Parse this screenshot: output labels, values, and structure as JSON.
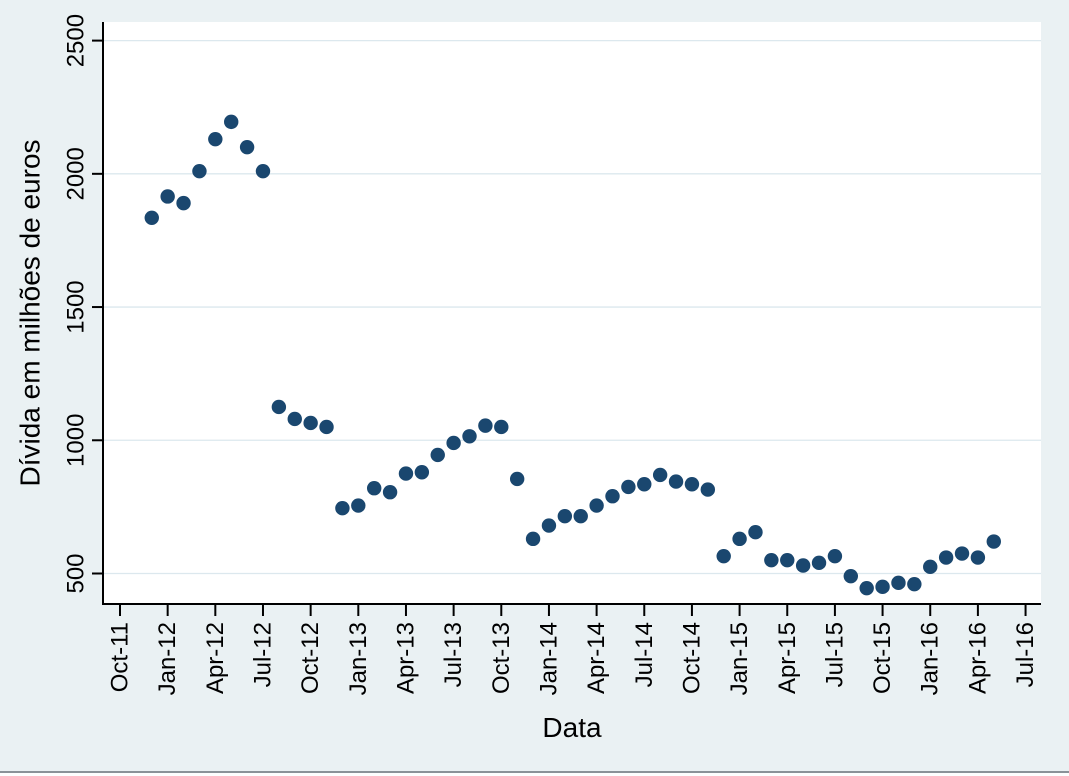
{
  "window": {
    "description": "Stata-style monthly scatter plot of debt in millions of euros"
  },
  "colors": {
    "outer_background": "#eaf1f3",
    "plot_background": "#ffffff",
    "gridline": "#dce8ee",
    "axis": "#000000",
    "marker": "#1a476f",
    "bottom_rule": "#8a9298"
  },
  "chart_data": {
    "type": "scatter",
    "title": "",
    "xlabel": "Data",
    "ylabel": "Dívida em milhões de euros",
    "legend": "none",
    "grid": "horizontal",
    "ylim": [
      385,
      2570
    ],
    "y_ticks": [
      500,
      1000,
      1500,
      2000,
      2500
    ],
    "x_tick_labels": [
      "Oct-11",
      "Jan-12",
      "Apr-12",
      "Jul-12",
      "Oct-12",
      "Jan-13",
      "Apr-13",
      "Jul-13",
      "Oct-13",
      "Jan-14",
      "Apr-14",
      "Jul-14",
      "Oct-14",
      "Jan-15",
      "Apr-15",
      "Jul-15",
      "Oct-15",
      "Jan-16",
      "Apr-16",
      "Jul-16"
    ],
    "marker": {
      "shape": "circle",
      "color": "#1a476f"
    },
    "series": [
      {
        "name": "Dívida em milhões de euros",
        "points": [
          {
            "date": "Dec-11",
            "value": 1835
          },
          {
            "date": "Jan-12",
            "value": 1915
          },
          {
            "date": "Feb-12",
            "value": 1890
          },
          {
            "date": "Mar-12",
            "value": 2010
          },
          {
            "date": "Apr-12",
            "value": 2130
          },
          {
            "date": "May-12",
            "value": 2195
          },
          {
            "date": "Jun-12",
            "value": 2100
          },
          {
            "date": "Jul-12",
            "value": 2010
          },
          {
            "date": "Aug-12",
            "value": 1125
          },
          {
            "date": "Sep-12",
            "value": 1080
          },
          {
            "date": "Oct-12",
            "value": 1065
          },
          {
            "date": "Nov-12",
            "value": 1050
          },
          {
            "date": "Dec-12",
            "value": 745
          },
          {
            "date": "Jan-13",
            "value": 755
          },
          {
            "date": "Feb-13",
            "value": 820
          },
          {
            "date": "Mar-13",
            "value": 805
          },
          {
            "date": "Apr-13",
            "value": 875
          },
          {
            "date": "May-13",
            "value": 880
          },
          {
            "date": "Jun-13",
            "value": 945
          },
          {
            "date": "Jul-13",
            "value": 990
          },
          {
            "date": "Aug-13",
            "value": 1015
          },
          {
            "date": "Sep-13",
            "value": 1055
          },
          {
            "date": "Oct-13",
            "value": 1050
          },
          {
            "date": "Nov-13",
            "value": 855
          },
          {
            "date": "Dec-13",
            "value": 630
          },
          {
            "date": "Jan-14",
            "value": 680
          },
          {
            "date": "Feb-14",
            "value": 715
          },
          {
            "date": "Mar-14",
            "value": 715
          },
          {
            "date": "Apr-14",
            "value": 755
          },
          {
            "date": "May-14",
            "value": 790
          },
          {
            "date": "Jun-14",
            "value": 825
          },
          {
            "date": "Jul-14",
            "value": 835
          },
          {
            "date": "Aug-14",
            "value": 870
          },
          {
            "date": "Sep-14",
            "value": 845
          },
          {
            "date": "Oct-14",
            "value": 835
          },
          {
            "date": "Nov-14",
            "value": 815
          },
          {
            "date": "Dec-14",
            "value": 565
          },
          {
            "date": "Jan-15",
            "value": 630
          },
          {
            "date": "Feb-15",
            "value": 655
          },
          {
            "date": "Mar-15",
            "value": 550
          },
          {
            "date": "Apr-15",
            "value": 550
          },
          {
            "date": "May-15",
            "value": 530
          },
          {
            "date": "Jun-15",
            "value": 540
          },
          {
            "date": "Jul-15",
            "value": 565
          },
          {
            "date": "Aug-15",
            "value": 490
          },
          {
            "date": "Sep-15",
            "value": 445
          },
          {
            "date": "Oct-15",
            "value": 450
          },
          {
            "date": "Nov-15",
            "value": 465
          },
          {
            "date": "Dec-15",
            "value": 460
          },
          {
            "date": "Jan-16",
            "value": 525
          },
          {
            "date": "Feb-16",
            "value": 560
          },
          {
            "date": "Mar-16",
            "value": 575
          },
          {
            "date": "Apr-16",
            "value": 560
          },
          {
            "date": "May-16",
            "value": 620
          }
        ]
      }
    ]
  }
}
